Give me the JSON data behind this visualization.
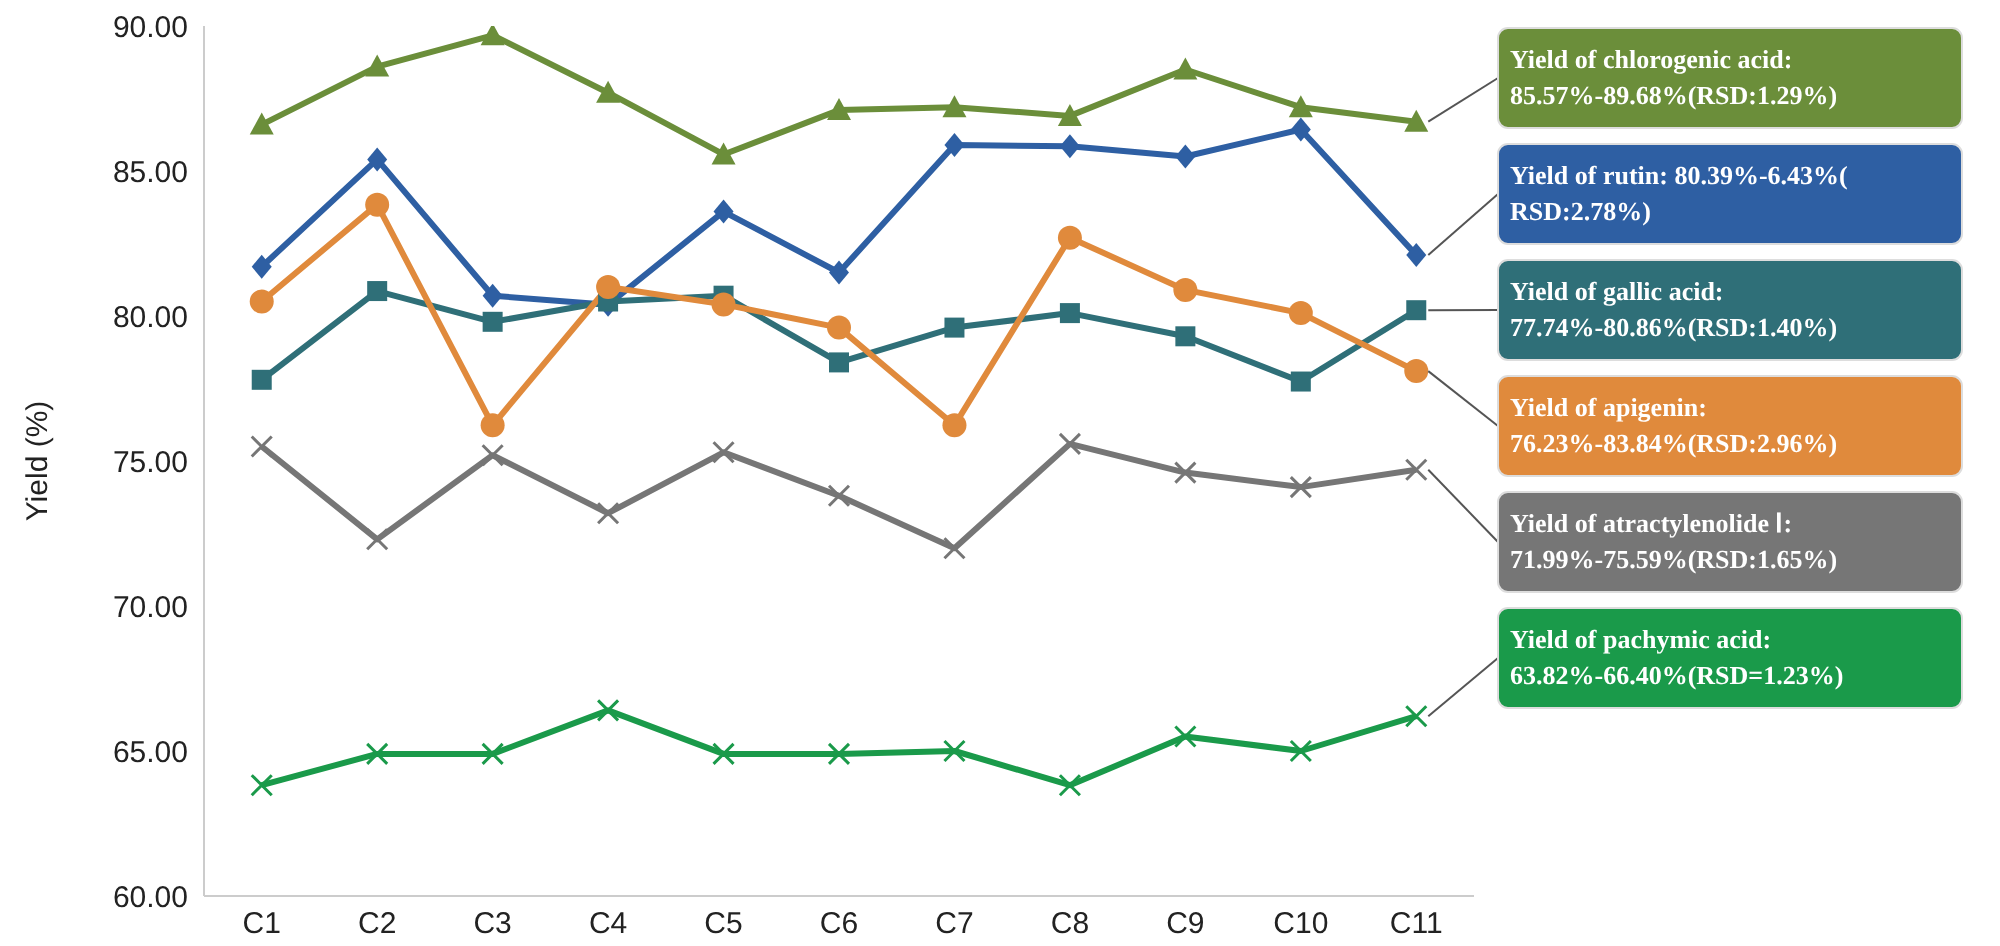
{
  "chart_data": {
    "type": "line",
    "ylabel": "Yield (%)",
    "categories": [
      "C1",
      "C2",
      "C3",
      "C4",
      "C5",
      "C6",
      "C7",
      "C8",
      "C9",
      "C10",
      "C11"
    ],
    "ylim": [
      60,
      90
    ],
    "yticks": [
      {
        "value": 60,
        "label": "60.00"
      },
      {
        "value": 65,
        "label": "65.00"
      },
      {
        "value": 70,
        "label": "70.00"
      },
      {
        "value": 75,
        "label": "75.00"
      },
      {
        "value": 80,
        "label": "80.00"
      },
      {
        "value": 85,
        "label": "85.00"
      },
      {
        "value": 90,
        "label": "90.00"
      }
    ],
    "grid": false,
    "legend": false,
    "series": [
      {
        "name": "Yield of chlorogenic acid: 85.57%-89.68%(RSD:1.29%)",
        "color": "#6b8e3a",
        "marker": "triangle",
        "values": [
          86.6,
          88.6,
          89.68,
          87.7,
          85.57,
          87.1,
          87.2,
          86.9,
          88.5,
          87.2,
          86.7
        ]
      },
      {
        "name": "Yield of rutin:  80.39%-6.43%( RSD:2.78%)",
        "color": "#2e5fa3",
        "marker": "diamond",
        "values": [
          81.7,
          85.4,
          80.7,
          80.39,
          83.6,
          81.5,
          85.9,
          85.85,
          85.5,
          86.43,
          82.1
        ]
      },
      {
        "name": "Yield of gallic acid:  77.74%-80.86%(RSD:1.40%)",
        "color": "#2f6f78",
        "marker": "square",
        "values": [
          77.8,
          80.86,
          79.8,
          80.5,
          80.7,
          78.4,
          79.6,
          80.1,
          79.3,
          77.74,
          80.2
        ]
      },
      {
        "name": "Yield of apigenin:  76.23%-83.84%(RSD:2.96%)",
        "color": "#e08a3c",
        "marker": "circle",
        "values": [
          80.5,
          83.84,
          76.23,
          81.0,
          80.4,
          79.6,
          76.23,
          82.7,
          80.9,
          80.1,
          78.1
        ]
      },
      {
        "name": "Yield of atractylenolide Ⅰ: 71.99%-75.59%(RSD:1.65%)",
        "color": "#767676",
        "marker": "cross",
        "values": [
          75.5,
          72.3,
          75.2,
          73.2,
          75.3,
          73.8,
          71.99,
          75.59,
          74.6,
          74.1,
          74.7
        ]
      },
      {
        "name": "Yield of pachymic acid: 63.82%-66.40%(RSD=1.23%)",
        "color": "#1a9a4a",
        "marker": "cross",
        "values": [
          63.82,
          64.9,
          64.9,
          66.4,
          64.9,
          64.9,
          65.0,
          63.82,
          65.5,
          65.0,
          66.2
        ]
      }
    ]
  }
}
